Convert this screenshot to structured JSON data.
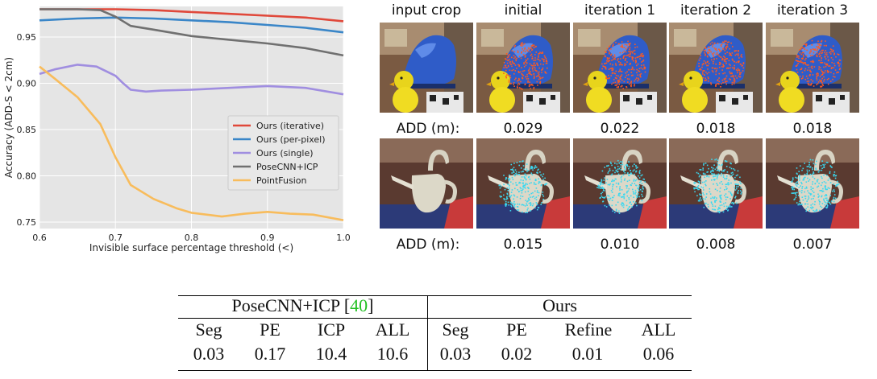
{
  "chart_data": {
    "type": "line",
    "xlabel": "Invisible surface percentage threshold (<)",
    "ylabel": "Accuracy (ADD-S < 2cm)",
    "xlim": [
      0.6,
      1.0
    ],
    "ylim": [
      0.743,
      0.983
    ],
    "xticks": [
      "0.6",
      "0.7",
      "0.8",
      "0.9",
      "1.0"
    ],
    "yticks": [
      "0.75",
      "0.80",
      "0.85",
      "0.90",
      "0.95"
    ],
    "ytick_values": [
      0.75,
      0.8,
      0.85,
      0.9,
      0.95
    ],
    "xtick_values": [
      0.6,
      0.7,
      0.8,
      0.9,
      1.0
    ],
    "grid": true,
    "legend_position": "center-right",
    "series": [
      {
        "name": "Ours (iterative)",
        "color": "#e0483a",
        "x": [
          0.6,
          0.65,
          0.7,
          0.75,
          0.8,
          0.85,
          0.9,
          0.95,
          1.0
        ],
        "y": [
          0.98,
          0.98,
          0.98,
          0.979,
          0.977,
          0.975,
          0.973,
          0.971,
          0.967
        ]
      },
      {
        "name": "Ours (per-pixel)",
        "color": "#3a86c8",
        "x": [
          0.6,
          0.65,
          0.7,
          0.75,
          0.8,
          0.85,
          0.9,
          0.95,
          1.0
        ],
        "y": [
          0.968,
          0.97,
          0.971,
          0.97,
          0.968,
          0.966,
          0.963,
          0.96,
          0.955
        ]
      },
      {
        "name": "Ours (single)",
        "color": "#a08ee0",
        "x": [
          0.6,
          0.62,
          0.65,
          0.675,
          0.7,
          0.71,
          0.72,
          0.74,
          0.76,
          0.8,
          0.85,
          0.9,
          0.95,
          1.0
        ],
        "y": [
          0.91,
          0.915,
          0.92,
          0.918,
          0.908,
          0.9,
          0.893,
          0.891,
          0.892,
          0.893,
          0.895,
          0.897,
          0.895,
          0.888
        ]
      },
      {
        "name": "PoseCNN+ICP",
        "color": "#707070",
        "x": [
          0.6,
          0.65,
          0.68,
          0.7,
          0.72,
          0.75,
          0.8,
          0.85,
          0.9,
          0.95,
          1.0
        ],
        "y": [
          0.98,
          0.98,
          0.979,
          0.972,
          0.962,
          0.958,
          0.951,
          0.947,
          0.943,
          0.938,
          0.93
        ]
      },
      {
        "name": "PointFusion",
        "color": "#f8bc5c",
        "x": [
          0.6,
          0.62,
          0.65,
          0.68,
          0.7,
          0.72,
          0.75,
          0.78,
          0.8,
          0.84,
          0.87,
          0.9,
          0.93,
          0.96,
          1.0
        ],
        "y": [
          0.918,
          0.905,
          0.885,
          0.856,
          0.82,
          0.79,
          0.775,
          0.765,
          0.76,
          0.756,
          0.759,
          0.761,
          0.759,
          0.758,
          0.752
        ]
      }
    ]
  },
  "figure": {
    "columns": [
      "input crop",
      "initial",
      "iteration 1",
      "iteration 2",
      "iteration 3"
    ],
    "rows": [
      {
        "label": "ADD (m):",
        "values": [
          "0.029",
          "0.022",
          "0.018",
          "0.018"
        ],
        "object": "glue-and-duck",
        "point_color": "#ff5a1f"
      },
      {
        "label": "ADD (m):",
        "values": [
          "0.015",
          "0.010",
          "0.008",
          "0.007"
        ],
        "object": "pitcher",
        "point_color": "#3ad8f0"
      }
    ]
  },
  "table": {
    "groups": [
      {
        "name": "PoseCNN+ICP",
        "citation": "40"
      },
      {
        "name": "Ours",
        "citation": ""
      }
    ],
    "headers": [
      "Seg",
      "PE",
      "ICP",
      "ALL",
      "Seg",
      "PE",
      "Refine",
      "ALL"
    ],
    "values": [
      "0.03",
      "0.17",
      "10.4",
      "10.6",
      "0.03",
      "0.02",
      "0.01",
      "0.06"
    ],
    "open_bracket": "[",
    "close_bracket": "]"
  }
}
